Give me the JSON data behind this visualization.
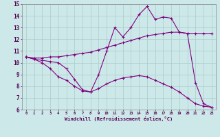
{
  "xlabel": "Windchill (Refroidissement éolien,°C)",
  "background_color": "#cce8e8",
  "line_color": "#800080",
  "grid_color": "#aacccc",
  "xlim": [
    -0.5,
    23.5
  ],
  "ylim": [
    6,
    15
  ],
  "xticks": [
    0,
    1,
    2,
    3,
    4,
    5,
    6,
    7,
    8,
    9,
    10,
    11,
    12,
    13,
    14,
    15,
    16,
    17,
    18,
    19,
    20,
    21,
    22,
    23
  ],
  "yticks": [
    6,
    7,
    8,
    9,
    10,
    11,
    12,
    13,
    14,
    15
  ],
  "line1_x": [
    0,
    1,
    2,
    3,
    4,
    5,
    6,
    7,
    8,
    9,
    10,
    11,
    12,
    13,
    14,
    15,
    16,
    17,
    18,
    19,
    20,
    21,
    22,
    23
  ],
  "line1_y": [
    10.5,
    10.3,
    10.2,
    10.1,
    10.0,
    9.5,
    8.6,
    7.7,
    7.5,
    9.0,
    11.0,
    13.0,
    12.2,
    13.0,
    14.1,
    14.8,
    13.7,
    13.9,
    13.8,
    12.6,
    12.5,
    8.3,
    6.5,
    6.2
  ],
  "line2_x": [
    0,
    1,
    2,
    3,
    4,
    5,
    6,
    7,
    8,
    9,
    10,
    11,
    12,
    13,
    14,
    15,
    16,
    17,
    18,
    19,
    20,
    21,
    22,
    23
  ],
  "line2_y": [
    10.5,
    10.4,
    10.4,
    10.5,
    10.5,
    10.6,
    10.7,
    10.8,
    10.9,
    11.1,
    11.3,
    11.5,
    11.7,
    11.9,
    12.1,
    12.3,
    12.4,
    12.5,
    12.6,
    12.6,
    12.5,
    12.5,
    12.5,
    12.5
  ],
  "line3_x": [
    0,
    1,
    2,
    3,
    4,
    5,
    6,
    7,
    8,
    9,
    10,
    11,
    12,
    13,
    14,
    15,
    16,
    17,
    18,
    19,
    20,
    21,
    22,
    23
  ],
  "line3_y": [
    10.5,
    10.3,
    10.0,
    9.5,
    8.8,
    8.5,
    8.0,
    7.6,
    7.5,
    7.8,
    8.2,
    8.5,
    8.7,
    8.8,
    8.9,
    8.8,
    8.5,
    8.2,
    7.9,
    7.5,
    7.0,
    6.5,
    6.3,
    6.2
  ]
}
